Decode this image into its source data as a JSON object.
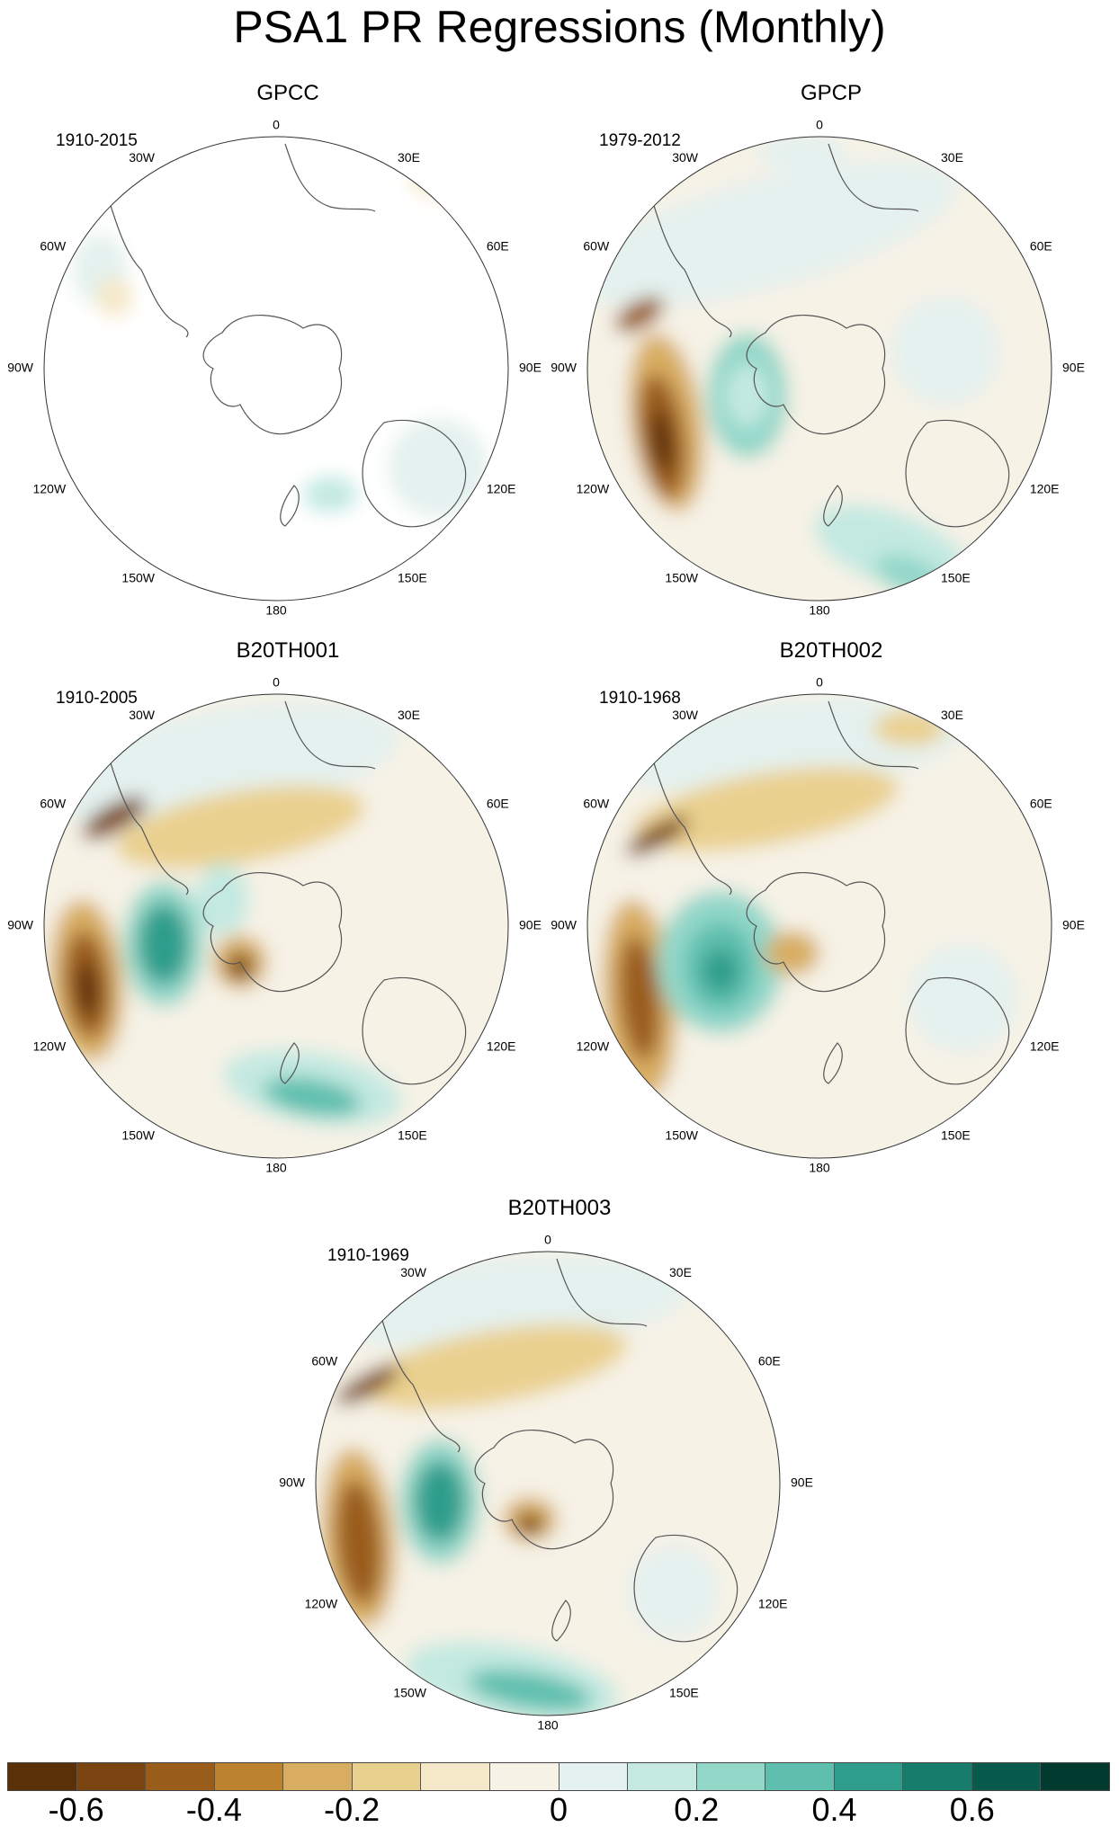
{
  "title": "PSA1 PR Regressions (Monthly)",
  "lon_labels": [
    "0",
    "30E",
    "60E",
    "90E",
    "120E",
    "150E",
    "180",
    "150W",
    "120W",
    "90W",
    "60W",
    "30W"
  ],
  "panels": [
    {
      "name": "GPCC",
      "period": "1910-2015"
    },
    {
      "name": "GPCP",
      "period": "1979-2012"
    },
    {
      "name": "B20TH001",
      "period": "1910-2005"
    },
    {
      "name": "B20TH002",
      "period": "1910-1968"
    },
    {
      "name": "B20TH003",
      "period": "1910-1969"
    }
  ],
  "colorbar": {
    "colors": [
      "#5a3008",
      "#7a4510",
      "#9a5c1a",
      "#bd8230",
      "#d8ad62",
      "#ead08f",
      "#f5e8c8",
      "#f6f2e6",
      "#e4f1ee",
      "#c3e9e1",
      "#93d7c9",
      "#5ebfae",
      "#2e9d8b",
      "#177c6c",
      "#075a4c",
      "#013b30"
    ],
    "tick_labels": [
      "-0.6",
      "-0.4",
      "-0.2",
      "0",
      "0.2",
      "0.4",
      "0.6"
    ]
  }
}
